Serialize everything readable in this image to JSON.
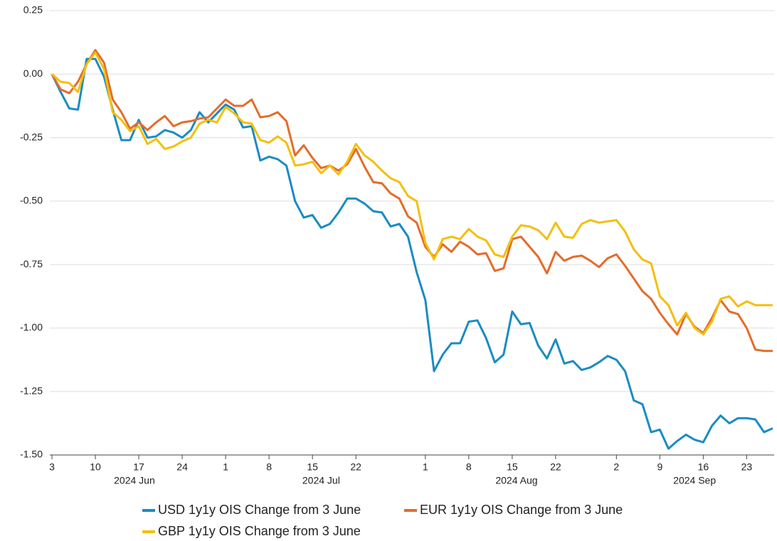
{
  "chart_data": {
    "type": "line",
    "x": [
      "2024-06-03",
      "2024-06-04",
      "2024-06-05",
      "2024-06-06",
      "2024-06-07",
      "2024-06-10",
      "2024-06-11",
      "2024-06-12",
      "2024-06-13",
      "2024-06-14",
      "2024-06-17",
      "2024-06-18",
      "2024-06-19",
      "2024-06-20",
      "2024-06-21",
      "2024-06-24",
      "2024-06-25",
      "2024-06-26",
      "2024-06-27",
      "2024-06-28",
      "2024-07-01",
      "2024-07-02",
      "2024-07-03",
      "2024-07-04",
      "2024-07-05",
      "2024-07-08",
      "2024-07-09",
      "2024-07-10",
      "2024-07-11",
      "2024-07-12",
      "2024-07-15",
      "2024-07-16",
      "2024-07-17",
      "2024-07-18",
      "2024-07-19",
      "2024-07-22",
      "2024-07-23",
      "2024-07-24",
      "2024-07-25",
      "2024-07-26",
      "2024-07-29",
      "2024-07-30",
      "2024-07-31",
      "2024-08-01",
      "2024-08-02",
      "2024-08-05",
      "2024-08-06",
      "2024-08-07",
      "2024-08-08",
      "2024-08-09",
      "2024-08-12",
      "2024-08-13",
      "2024-08-14",
      "2024-08-15",
      "2024-08-16",
      "2024-08-19",
      "2024-08-20",
      "2024-08-21",
      "2024-08-22",
      "2024-08-23",
      "2024-08-26",
      "2024-08-27",
      "2024-08-28",
      "2024-08-29",
      "2024-08-30",
      "2024-09-02",
      "2024-09-03",
      "2024-09-04",
      "2024-09-05",
      "2024-09-06",
      "2024-09-09",
      "2024-09-10",
      "2024-09-11",
      "2024-09-12",
      "2024-09-13",
      "2024-09-16",
      "2024-09-17",
      "2024-09-18",
      "2024-09-19",
      "2024-09-20",
      "2024-09-23",
      "2024-09-24",
      "2024-09-25",
      "2024-09-26"
    ],
    "series": [
      {
        "name": "USD 1y1y OIS Change from 3 June",
        "color": "#1a8cc2",
        "values": [
          0,
          -0.07,
          -0.135,
          -0.14,
          0.06,
          0.06,
          -0.01,
          -0.14,
          -0.26,
          -0.26,
          -0.18,
          -0.25,
          -0.245,
          -0.22,
          -0.23,
          -0.25,
          -0.22,
          -0.15,
          -0.19,
          -0.155,
          -0.12,
          -0.14,
          -0.21,
          -0.205,
          -0.34,
          -0.325,
          -0.335,
          -0.36,
          -0.5,
          -0.565,
          -0.555,
          -0.605,
          -0.59,
          -0.545,
          -0.49,
          -0.49,
          -0.51,
          -0.54,
          -0.545,
          -0.6,
          -0.59,
          -0.64,
          -0.78,
          -0.89,
          -1.17,
          -1.105,
          -1.06,
          -1.06,
          -0.975,
          -0.97,
          -1.04,
          -1.135,
          -1.105,
          -0.935,
          -0.985,
          -0.98,
          -1.07,
          -1.12,
          -1.045,
          -1.14,
          -1.13,
          -1.165,
          -1.155,
          -1.135,
          -1.11,
          -1.125,
          -1.17,
          -1.285,
          -1.3,
          -1.41,
          -1.4,
          -1.475,
          -1.445,
          -1.42,
          -1.44,
          -1.45,
          -1.385,
          -1.345,
          -1.375,
          -1.355,
          -1.355,
          -1.36,
          -1.41,
          -1.395
        ]
      },
      {
        "name": "EUR 1y1y OIS Change from 3 June",
        "color": "#e46c2a",
        "values": [
          0,
          -0.06,
          -0.075,
          -0.03,
          0.04,
          0.095,
          0.045,
          -0.1,
          -0.15,
          -0.215,
          -0.19,
          -0.22,
          -0.19,
          -0.165,
          -0.205,
          -0.19,
          -0.185,
          -0.175,
          -0.17,
          -0.135,
          -0.1,
          -0.125,
          -0.125,
          -0.1,
          -0.17,
          -0.165,
          -0.15,
          -0.185,
          -0.32,
          -0.28,
          -0.33,
          -0.37,
          -0.36,
          -0.38,
          -0.355,
          -0.295,
          -0.365,
          -0.425,
          -0.43,
          -0.47,
          -0.49,
          -0.56,
          -0.585,
          -0.68,
          -0.72,
          -0.67,
          -0.7,
          -0.66,
          -0.68,
          -0.71,
          -0.705,
          -0.775,
          -0.765,
          -0.65,
          -0.64,
          -0.68,
          -0.72,
          -0.785,
          -0.7,
          -0.735,
          -0.72,
          -0.715,
          -0.735,
          -0.76,
          -0.725,
          -0.71,
          -0.755,
          -0.805,
          -0.855,
          -0.885,
          -0.94,
          -0.985,
          -1.025,
          -0.945,
          -0.995,
          -1.02,
          -0.96,
          -0.89,
          -0.935,
          -0.945,
          -1.0,
          -1.085,
          -1.09,
          -1.09
        ]
      },
      {
        "name": "GBP 1y1y OIS Change from 3 June",
        "color": "#f4bf0c",
        "values": [
          0,
          -0.03,
          -0.035,
          -0.07,
          0.04,
          0.085,
          0.02,
          -0.15,
          -0.18,
          -0.225,
          -0.205,
          -0.275,
          -0.255,
          -0.295,
          -0.285,
          -0.265,
          -0.25,
          -0.195,
          -0.18,
          -0.19,
          -0.13,
          -0.155,
          -0.19,
          -0.195,
          -0.26,
          -0.27,
          -0.245,
          -0.27,
          -0.36,
          -0.355,
          -0.345,
          -0.39,
          -0.36,
          -0.395,
          -0.345,
          -0.275,
          -0.32,
          -0.345,
          -0.38,
          -0.41,
          -0.425,
          -0.48,
          -0.5,
          -0.665,
          -0.73,
          -0.65,
          -0.64,
          -0.65,
          -0.61,
          -0.64,
          -0.655,
          -0.71,
          -0.72,
          -0.64,
          -0.595,
          -0.6,
          -0.615,
          -0.65,
          -0.585,
          -0.64,
          -0.645,
          -0.59,
          -0.575,
          -0.585,
          -0.58,
          -0.575,
          -0.62,
          -0.69,
          -0.73,
          -0.745,
          -0.875,
          -0.91,
          -0.99,
          -0.94,
          -1.0,
          -1.025,
          -0.975,
          -0.885,
          -0.875,
          -0.915,
          -0.895,
          -0.91,
          -0.91,
          -0.91
        ]
      }
    ],
    "ylim": [
      -1.5,
      0.25
    ],
    "yticks": [
      {
        "value": 0.25,
        "label": "0.25"
      },
      {
        "value": 0,
        "label": "0.00"
      },
      {
        "value": -0.25,
        "label": "-0.25"
      },
      {
        "value": -0.5,
        "label": "-0.50"
      },
      {
        "value": -0.75,
        "label": "-0.75"
      },
      {
        "value": -1,
        "label": "-1.00"
      },
      {
        "value": -1.25,
        "label": "-1.25"
      },
      {
        "value": -1.5,
        "label": "-1.50"
      }
    ],
    "xticks": [
      {
        "value": "2024-06-03",
        "label": "3"
      },
      {
        "value": "2024-06-10",
        "label": "10"
      },
      {
        "value": "2024-06-17",
        "label": "17"
      },
      {
        "value": "2024-06-24",
        "label": "24"
      },
      {
        "value": "2024-07-01",
        "label": "1"
      },
      {
        "value": "2024-07-08",
        "label": "8"
      },
      {
        "value": "2024-07-15",
        "label": "15"
      },
      {
        "value": "2024-07-22",
        "label": "22"
      },
      {
        "value": "2024-08-01",
        "label": "1"
      },
      {
        "value": "2024-08-08",
        "label": "8"
      },
      {
        "value": "2024-08-15",
        "label": "15"
      },
      {
        "value": "2024-08-22",
        "label": "22"
      },
      {
        "value": "2024-09-02",
        "label": "2"
      },
      {
        "value": "2024-09-09",
        "label": "9"
      },
      {
        "value": "2024-09-16",
        "label": "16"
      },
      {
        "value": "2024-09-23",
        "label": "23"
      }
    ],
    "xgroups": [
      {
        "month": "2024-06",
        "label": "2024 Jun"
      },
      {
        "month": "2024-07",
        "label": "2024 Jul"
      },
      {
        "month": "2024-08",
        "label": "2024 Aug"
      },
      {
        "month": "2024-09",
        "label": "2024 Sep"
      }
    ],
    "grid": true,
    "legend": "bottom"
  }
}
